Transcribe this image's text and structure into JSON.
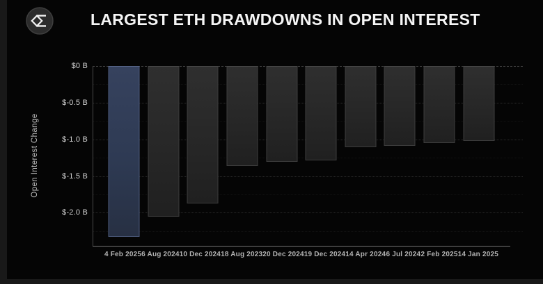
{
  "header": {
    "title": "LARGEST ETH DRAWDOWNS IN OPEN INTEREST",
    "logo": "sigma-diamond-logo"
  },
  "chart_data": {
    "type": "bar",
    "title": "LARGEST ETH DRAWDOWNS IN OPEN INTEREST",
    "categories": [
      "4 Feb 2025",
      "6 Aug 2024",
      "10 Dec 2024",
      "18 Aug 2023",
      "20 Dec 2024",
      "19 Dec 2024",
      "14 Apr 2024",
      "6 Jul 2024",
      "2 Feb 2025",
      "14 Jan 2025"
    ],
    "values": [
      -2.33,
      -2.05,
      -1.87,
      -1.36,
      -1.31,
      -1.29,
      -1.11,
      -1.09,
      -1.05,
      -1.02
    ],
    "unit": "billions USD",
    "xlabel": "",
    "ylabel": "Open Interest Change",
    "ytick_labels": [
      "$0 B",
      "$-0.5 B",
      "$-1.0 B",
      "$-1.5 B",
      "$-2.0 B"
    ],
    "ytick_values": [
      0,
      -0.5,
      -1.0,
      -1.5,
      -2.0
    ],
    "minor_grid_values": [
      -0.25,
      -0.75,
      -1.25,
      -1.75,
      -2.25
    ],
    "ylim": [
      -2.45,
      0
    ],
    "grid": "horizontal-dotted",
    "legend": "none",
    "highlight_index": 0
  },
  "colors": {
    "background": "#050505",
    "page_background": "#191919",
    "bar_default": "#282828",
    "bar_highlight": "#2f3a54",
    "bar_highlight_border": "#4d5b7d",
    "text_primary": "#f5f5f5",
    "text_secondary": "#b3b3b3",
    "axis_line": "#757575"
  }
}
